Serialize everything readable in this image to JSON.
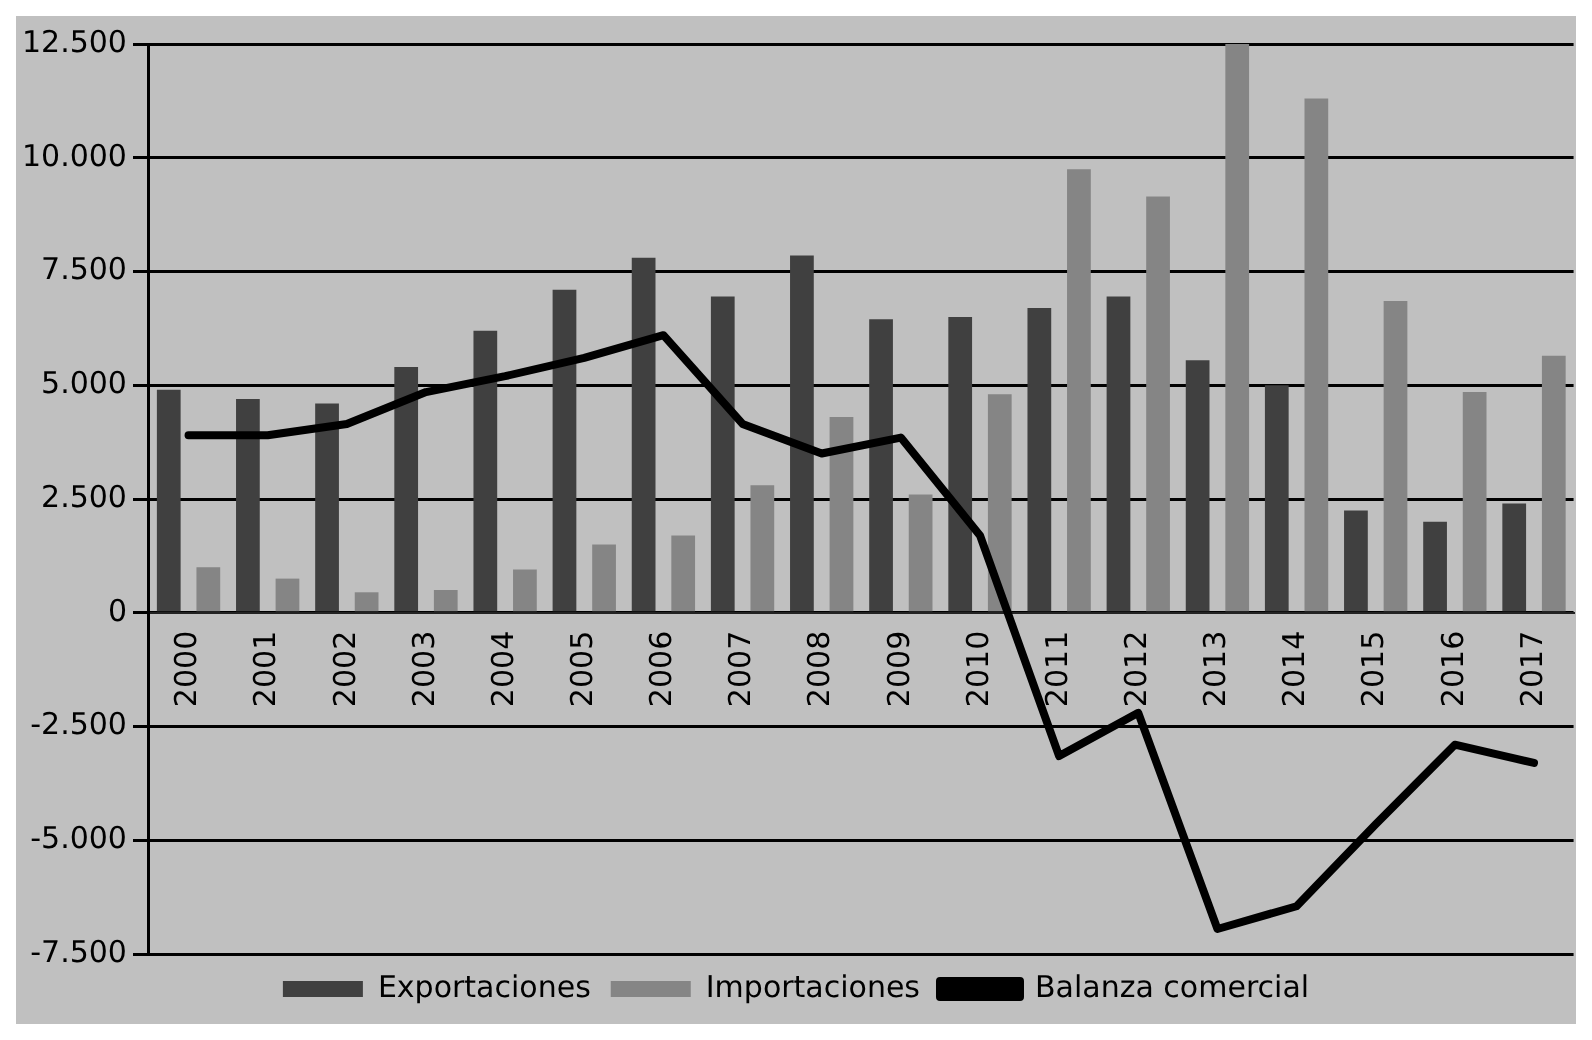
{
  "chart_data": {
    "type": "bar",
    "categories": [
      "2000",
      "2001",
      "2002",
      "2003",
      "2004",
      "2005",
      "2006",
      "2007",
      "2008",
      "2009",
      "2010",
      "2011",
      "2012",
      "2013",
      "2014",
      "2015",
      "2016",
      "2017"
    ],
    "series": [
      {
        "name": "Exportaciones",
        "color": "#404040",
        "values": [
          4900,
          4700,
          4600,
          5400,
          6200,
          7100,
          7800,
          6950,
          7850,
          6450,
          6500,
          6700,
          6950,
          5550,
          5000,
          2250,
          2000,
          2400
        ]
      },
      {
        "name": "Importaciones",
        "color": "#858585",
        "values": [
          1000,
          750,
          450,
          500,
          950,
          1500,
          1700,
          2800,
          4300,
          2600,
          4800,
          9750,
          9150,
          12500,
          11300,
          6850,
          4850,
          5650
        ]
      },
      {
        "name": "Balanza comercial",
        "type": "line",
        "color": "#000000",
        "values": [
          3900,
          3900,
          4150,
          4850,
          5200,
          5600,
          6100,
          4150,
          3500,
          3850,
          1700,
          -3150,
          -2200,
          -6950,
          -6450,
          -4650,
          -2900,
          -3300
        ]
      }
    ],
    "ylim": [
      -7500,
      12500
    ],
    "yticks": [
      {
        "value": -7500,
        "label": "-7.500"
      },
      {
        "value": -5000,
        "label": "-5.000"
      },
      {
        "value": -2500,
        "label": "-2.500"
      },
      {
        "value": 0,
        "label": "0"
      },
      {
        "value": 2500,
        "label": "2.500"
      },
      {
        "value": 5000,
        "label": "5.000"
      },
      {
        "value": 7500,
        "label": "7.500"
      },
      {
        "value": 10000,
        "label": "10.000"
      },
      {
        "value": 12500,
        "label": "12.500"
      }
    ],
    "grid": "y",
    "legend": "bottom",
    "marker": "none",
    "line_style": "solid"
  }
}
